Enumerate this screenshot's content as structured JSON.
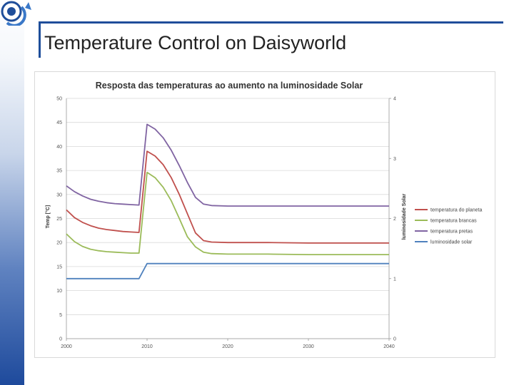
{
  "slide": {
    "title": "Temperature Control on Daisyworld"
  },
  "colors": {
    "frame": "#1f4e9a",
    "series": [
      "#c0504d",
      "#9bbb59",
      "#8064a2",
      "#4f81bd"
    ]
  },
  "chart_data": {
    "type": "line",
    "title": "Resposta das temperaturas ao aumento na luminosidade Solar",
    "xlabel": "",
    "ylabel": "Temp [°C]",
    "y2label": "luminosidade Solar",
    "xlim": [
      2000,
      2040
    ],
    "ylim": [
      0,
      50
    ],
    "y2lim": [
      0,
      4
    ],
    "xticks": [
      "2000",
      "2010",
      "2020",
      "2030",
      "2040"
    ],
    "yticks": [
      "0",
      "5",
      "10",
      "15",
      "20",
      "25",
      "30",
      "35",
      "40",
      "45",
      "50"
    ],
    "y2ticks": [
      "0",
      "1",
      "2",
      "3",
      "4"
    ],
    "grid": true,
    "legend_position": "right",
    "series": [
      {
        "name": "temperatura do planeta",
        "axis": "left",
        "x": [
          2000,
          2001,
          2002,
          2003,
          2004,
          2005,
          2006,
          2007,
          2008,
          2009,
          2010,
          2011,
          2012,
          2013,
          2014,
          2015,
          2016,
          2017,
          2018,
          2020,
          2025,
          2030,
          2035,
          2040
        ],
        "y": [
          26.8,
          25.2,
          24.2,
          23.5,
          23.0,
          22.7,
          22.5,
          22.3,
          22.2,
          22.1,
          39.0,
          38.0,
          36.2,
          33.5,
          30.0,
          26.0,
          22.0,
          20.4,
          20.1,
          20.0,
          20.0,
          19.9,
          19.9,
          19.9
        ]
      },
      {
        "name": "temperatura brancas",
        "axis": "left",
        "x": [
          2000,
          2001,
          2002,
          2003,
          2004,
          2005,
          2006,
          2007,
          2008,
          2009,
          2010,
          2011,
          2012,
          2013,
          2014,
          2015,
          2016,
          2017,
          2018,
          2020,
          2025,
          2030,
          2035,
          2040
        ],
        "y": [
          21.8,
          20.2,
          19.2,
          18.6,
          18.3,
          18.1,
          18.0,
          17.9,
          17.8,
          17.8,
          34.6,
          33.5,
          31.5,
          28.7,
          25.0,
          21.2,
          19.1,
          18.0,
          17.7,
          17.6,
          17.6,
          17.5,
          17.5,
          17.5
        ]
      },
      {
        "name": "temperatura pretas",
        "axis": "left",
        "x": [
          2000,
          2001,
          2002,
          2003,
          2004,
          2005,
          2006,
          2007,
          2008,
          2009,
          2010,
          2011,
          2012,
          2013,
          2014,
          2015,
          2016,
          2017,
          2018,
          2020,
          2025,
          2030,
          2035,
          2040
        ],
        "y": [
          31.8,
          30.6,
          29.7,
          29.0,
          28.6,
          28.3,
          28.1,
          28.0,
          27.9,
          27.8,
          44.6,
          43.6,
          41.8,
          39.2,
          36.0,
          32.5,
          29.4,
          28.0,
          27.7,
          27.6,
          27.6,
          27.6,
          27.6,
          27.6
        ]
      },
      {
        "name": "luminosidade solar",
        "axis": "right",
        "x": [
          2000,
          2009,
          2010,
          2040
        ],
        "y": [
          1.0,
          1.0,
          1.25,
          1.25
        ]
      }
    ]
  }
}
